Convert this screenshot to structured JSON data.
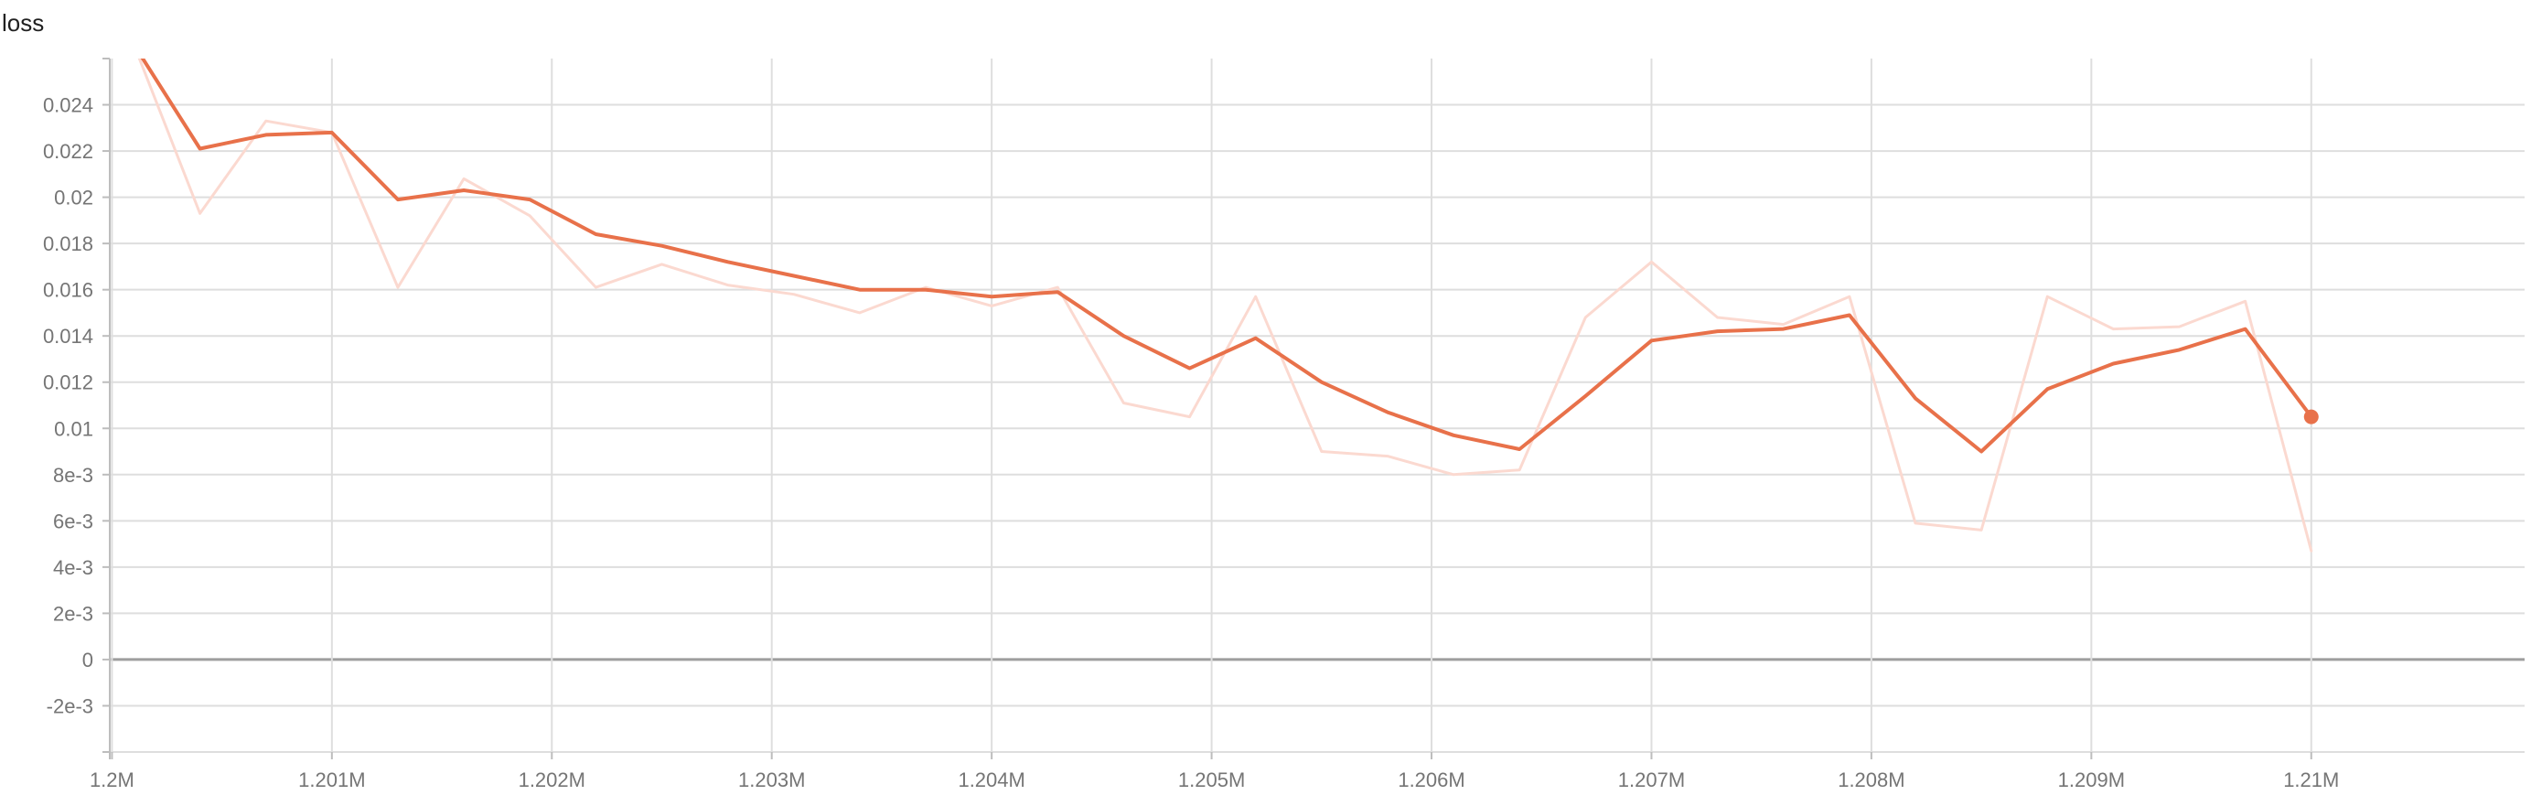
{
  "chart_data": {
    "type": "line",
    "title": "loss",
    "xlabel": "",
    "ylabel": "",
    "xlim": [
      1199990,
      1210970
    ],
    "ylim": [
      -0.004,
      0.026
    ],
    "grid": true,
    "x_ticks": [
      {
        "value": 1200000,
        "label": "1.2M"
      },
      {
        "value": 1201000,
        "label": "1.201M"
      },
      {
        "value": 1202000,
        "label": "1.202M"
      },
      {
        "value": 1203000,
        "label": "1.203M"
      },
      {
        "value": 1204000,
        "label": "1.204M"
      },
      {
        "value": 1205000,
        "label": "1.205M"
      },
      {
        "value": 1206000,
        "label": "1.206M"
      },
      {
        "value": 1207000,
        "label": "1.207M"
      },
      {
        "value": 1208000,
        "label": "1.208M"
      },
      {
        "value": 1209000,
        "label": "1.209M"
      },
      {
        "value": 1210000,
        "label": "1.21M"
      }
    ],
    "y_ticks": [
      {
        "value": 0.024,
        "label": "0.024"
      },
      {
        "value": 0.022,
        "label": "0.022"
      },
      {
        "value": 0.02,
        "label": "0.02"
      },
      {
        "value": 0.018,
        "label": "0.018"
      },
      {
        "value": 0.016,
        "label": "0.016"
      },
      {
        "value": 0.014,
        "label": "0.014"
      },
      {
        "value": 0.012,
        "label": "0.012"
      },
      {
        "value": 0.01,
        "label": "0.01"
      },
      {
        "value": 0.008,
        "label": "8e-3"
      },
      {
        "value": 0.006,
        "label": "6e-3"
      },
      {
        "value": 0.004,
        "label": "4e-3"
      },
      {
        "value": 0.002,
        "label": "2e-3"
      },
      {
        "value": 0,
        "label": "0"
      },
      {
        "value": -0.002,
        "label": "-2e-3"
      }
    ],
    "series": [
      {
        "role": "raw",
        "color": "#fbd9d0",
        "x": [
          1200100,
          1200400,
          1200700,
          1201000,
          1201300,
          1201600,
          1201900,
          1202200,
          1202500,
          1202800,
          1203100,
          1203400,
          1203700,
          1204000,
          1204300,
          1204600,
          1204900,
          1205200,
          1205500,
          1205800,
          1206100,
          1206400,
          1206700,
          1207000,
          1207300,
          1207600,
          1207900,
          1208200,
          1208500,
          1208800,
          1209100,
          1209400,
          1209700,
          1210000
        ],
        "values": [
          0.0266,
          0.0193,
          0.0233,
          0.0228,
          0.0161,
          0.0208,
          0.0192,
          0.0161,
          0.0171,
          0.0162,
          0.0158,
          0.015,
          0.0161,
          0.0153,
          0.0161,
          0.0111,
          0.0105,
          0.0157,
          0.009,
          0.0088,
          0.008,
          0.0082,
          0.0148,
          0.0172,
          0.0148,
          0.0145,
          0.0157,
          0.0059,
          0.0056,
          0.0157,
          0.0143,
          0.0144,
          0.0155,
          0.0047
        ]
      },
      {
        "role": "smoothed",
        "color": "#e8714a",
        "x": [
          1200100,
          1200400,
          1200700,
          1201000,
          1201300,
          1201600,
          1201900,
          1202200,
          1202500,
          1202800,
          1203100,
          1203400,
          1203700,
          1204000,
          1204300,
          1204600,
          1204900,
          1205200,
          1205500,
          1205800,
          1206100,
          1206400,
          1206700,
          1207000,
          1207300,
          1207600,
          1207900,
          1208200,
          1208500,
          1208800,
          1209100,
          1209400,
          1209700,
          1210000
        ],
        "values": [
          0.0266,
          0.0221,
          0.0227,
          0.0228,
          0.0199,
          0.0203,
          0.0199,
          0.0184,
          0.0179,
          0.0172,
          0.0166,
          0.016,
          0.016,
          0.0157,
          0.0159,
          0.014,
          0.0126,
          0.0139,
          0.012,
          0.0107,
          0.0097,
          0.0091,
          0.0114,
          0.0138,
          0.0142,
          0.0143,
          0.0149,
          0.0113,
          0.009,
          0.0117,
          0.0128,
          0.0134,
          0.0143,
          0.0105
        ]
      }
    ]
  }
}
